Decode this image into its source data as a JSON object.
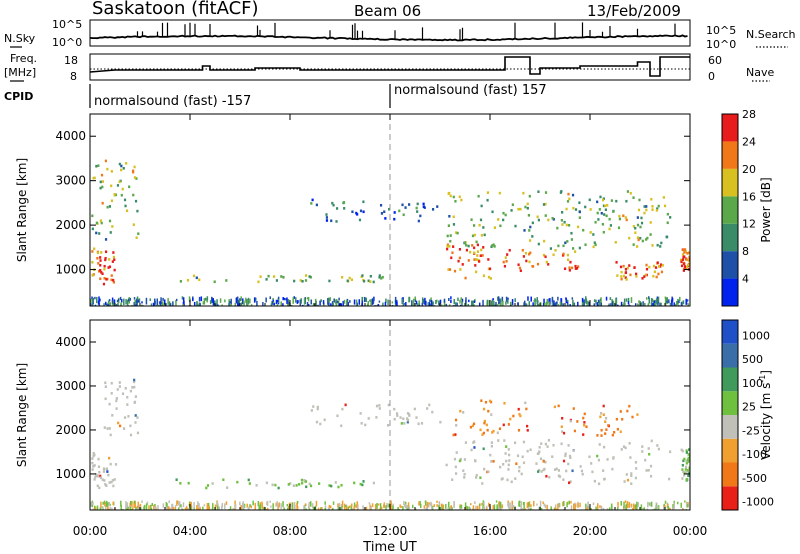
{
  "header": {
    "station": "Saskatoon (fitACF)",
    "beam": "Beam 06",
    "date": "13/Feb/2009"
  },
  "noise_panel": {
    "left_label": "N.Sky",
    "right_label": "N.Search",
    "left_ticks": [
      "10^5",
      "10^0"
    ],
    "right_ticks": [
      "10^5",
      "10^0"
    ]
  },
  "freq_panel": {
    "left_label_line1": "Freq.",
    "left_label_line2": "[MHz]",
    "right_label": "Nave",
    "left_ticks": [
      "18",
      "8"
    ],
    "right_ticks": [
      "60",
      "0"
    ]
  },
  "cpid": {
    "label": "CPID",
    "segments": [
      "normalsound (fast) -157",
      "normalsound (fast) 157"
    ]
  },
  "x_axis": {
    "title": "Time UT",
    "ticks": [
      "00:00",
      "04:00",
      "08:00",
      "12:00",
      "16:00",
      "20:00",
      "00:00"
    ]
  },
  "chart_data": [
    {
      "type": "heatmap",
      "title": "",
      "ylabel": "Slant Range [km]",
      "xlabel": "Time UT",
      "x_range_hours": [
        0,
        24
      ],
      "ylim": [
        180,
        4500
      ],
      "yticks": [
        "1000",
        "2000",
        "3000",
        "4000"
      ],
      "colorbar": {
        "label": "Power [dB]",
        "ticks": [
          "4",
          "8",
          "12",
          "16",
          "20",
          "24",
          "28"
        ],
        "colors": [
          "#0022ee",
          "#1e50a8",
          "#3a8c68",
          "#5aa84a",
          "#d8c020",
          "#f07818",
          "#e81c1c"
        ]
      },
      "echo_regions": [
        {
          "t": [
            0.05,
            1.0
          ],
          "r": [
            700,
            1500
          ],
          "level": "high"
        },
        {
          "t": [
            0.0,
            1.9
          ],
          "r": [
            1700,
            3500
          ],
          "level": "medium"
        },
        {
          "t": [
            3.2,
            12.0
          ],
          "r": [
            750,
            900
          ],
          "level": "medium"
        },
        {
          "t": [
            8.8,
            14.0
          ],
          "r": [
            2100,
            2600
          ],
          "level": "low"
        },
        {
          "t": [
            14.2,
            16.0
          ],
          "r": [
            800,
            1600
          ],
          "level": "high"
        },
        {
          "t": [
            14.2,
            23.2
          ],
          "r": [
            1500,
            2800
          ],
          "level": "medium"
        },
        {
          "t": [
            16.5,
            19.5
          ],
          "r": [
            1000,
            1500
          ],
          "level": "high"
        },
        {
          "t": [
            21.0,
            22.9
          ],
          "r": [
            800,
            1200
          ],
          "level": "high"
        },
        {
          "t": [
            23.6,
            24.0
          ],
          "r": [
            1000,
            1500
          ],
          "level": "high"
        }
      ]
    },
    {
      "type": "heatmap",
      "title": "",
      "ylabel": "Slant Range [km]",
      "xlabel": "Time UT",
      "x_range_hours": [
        0,
        24
      ],
      "ylim": [
        180,
        4500
      ],
      "yticks": [
        "1000",
        "2000",
        "3000",
        "4000"
      ],
      "colorbar": {
        "label": "Velocity [m s-1]",
        "label_main": "Velocity",
        "label_unit": "[m s",
        "label_exp": "-1",
        "ticks": [
          "1000",
          "500",
          "100",
          "25",
          "-25",
          "-100",
          "-500",
          "-1000"
        ],
        "colors": [
          "#2050c8",
          "#3a6ea8",
          "#3f9a5c",
          "#70c040",
          "#c0c0b8",
          "#f0a030",
          "#f07818",
          "#e82018"
        ]
      },
      "echo_regions": [
        {
          "t": [
            0.05,
            1.0
          ],
          "r": [
            700,
            1500
          ],
          "level": "ground"
        },
        {
          "t": [
            0.5,
            1.9
          ],
          "r": [
            1900,
            3200
          ],
          "level": "ground"
        },
        {
          "t": [
            3.2,
            12.0
          ],
          "r": [
            700,
            900
          ],
          "level": "slow_positive"
        },
        {
          "t": [
            8.8,
            14.0
          ],
          "r": [
            2100,
            2600
          ],
          "level": "ground"
        },
        {
          "t": [
            14.5,
            17.5
          ],
          "r": [
            1900,
            2700
          ],
          "level": "negative"
        },
        {
          "t": [
            18.5,
            22.0
          ],
          "r": [
            1900,
            2600
          ],
          "level": "negative"
        },
        {
          "t": [
            14.2,
            23.2
          ],
          "r": [
            800,
            1800
          ],
          "level": "ground"
        },
        {
          "t": [
            23.6,
            24.0
          ],
          "r": [
            800,
            1600
          ],
          "level": "slow_positive"
        }
      ]
    }
  ]
}
